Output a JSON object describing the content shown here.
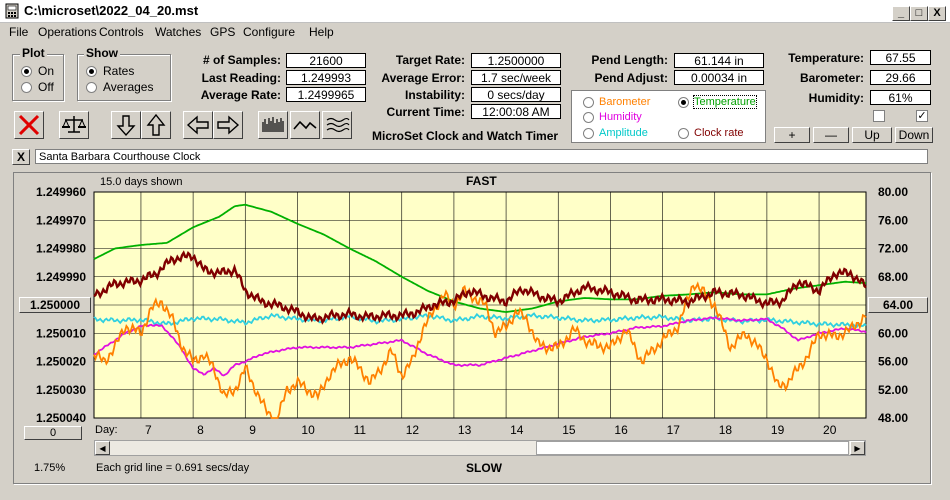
{
  "window": {
    "title": "C:\\microset\\2022_04_20.mst",
    "min": "_",
    "max": "□",
    "close": "X"
  },
  "menu": [
    "File",
    "Operations",
    "Controls",
    "Watches",
    "GPS",
    "Configure",
    "Help"
  ],
  "plot_group": {
    "title": "Plot",
    "on": "On",
    "off": "Off",
    "selected": "On"
  },
  "show_group": {
    "title": "Show",
    "rates": "Rates",
    "averages": "Averages",
    "selected": "Rates"
  },
  "stats": {
    "samples_label": "# of Samples:",
    "samples": "21600",
    "last_label": "Last Reading:",
    "last": "1.249993",
    "avg_label": "Average Rate:",
    "avg": "1.2499965",
    "target_label": "Target Rate:",
    "target": "1.2500000",
    "err_label": "Average Error:",
    "err": "1.7 sec/week",
    "instab_label": "Instability:",
    "instab": "0 secs/day",
    "time_label": "Current Time:",
    "time": "12:00:08 AM",
    "pendlen_label": "Pend Length:",
    "pendlen": "61.144 in",
    "pendadj_label": "Pend Adjust:",
    "pendadj": "0.00034 in",
    "temp_label": "Temperature:",
    "temp": "67.55",
    "baro_label": "Barometer:",
    "baro": "29.66",
    "hum_label": "Humidity:",
    "hum": "61%"
  },
  "app_caption": "MicroSet Clock and Watch Timer",
  "sensor_select": {
    "options": [
      {
        "label": "Barometer",
        "color": "#ff8000"
      },
      {
        "label": "Temperature",
        "color": "#00a000"
      },
      {
        "label": "Humidity",
        "color": "#e000e0"
      },
      {
        "label": "Amplitude",
        "color": "#00c8c8"
      },
      {
        "label": "Clock rate",
        "color": "#800000"
      }
    ],
    "selected": "Temperature"
  },
  "sensor_buttons": {
    "plus": "+",
    "minus": "—",
    "up": "Up",
    "down": "Down"
  },
  "checkboxes": [
    {
      "checked": false
    },
    {
      "checked": true,
      "mark": "✓"
    }
  ],
  "watch_name": "Santa Barbara Courthouse Clock",
  "clear_button": "X",
  "toolbar_icons": [
    "clear-x-icon",
    "scale-balance-icon",
    "arrow-down-icon",
    "arrow-up-icon",
    "arrow-left-icon",
    "arrow-right-icon",
    "bars-icon",
    "wave-icon",
    "multi-wave-icon"
  ],
  "graph": {
    "days_shown": "15.0 days shown",
    "fast": "FAST",
    "slow": "SLOW",
    "grid_note": "Each grid line = 0.691 secs/day",
    "day_label": "Day:",
    "percent": "1.75%",
    "center_button": "1.250000",
    "zero_button": "0",
    "right_button": "64.00"
  },
  "chart_data": {
    "type": "line",
    "x_unit": "day",
    "xlim": [
      6.1,
      20.9
    ],
    "x_ticks": [
      "7",
      "8",
      "9",
      "10",
      "11",
      "12",
      "13",
      "14",
      "15",
      "16",
      "17",
      "18",
      "19",
      "20"
    ],
    "y_left_ticks": [
      "1.249960",
      "1.249970",
      "1.249980",
      "1.249990",
      "",
      "1.250010",
      "1.250020",
      "1.250030",
      "1.250040"
    ],
    "y_left_range": [
      1.24996,
      1.25004
    ],
    "y_right_ticks": [
      "80.00",
      "76.00",
      "72.00",
      "68.00",
      "",
      "60.00",
      "56.00",
      "52.00",
      "48.00"
    ],
    "y_right_range": [
      80,
      48
    ],
    "grid": true,
    "series": [
      {
        "name": "Temperature",
        "color": "#00b000",
        "x": [
          6.1,
          6.5,
          7,
          7.5,
          8,
          8.5,
          8.8,
          9,
          9.5,
          10,
          10.5,
          11,
          11.5,
          12,
          12.5,
          13,
          13.5,
          14,
          14.5,
          15,
          15.5,
          16,
          16.5,
          17,
          17.5,
          18,
          18.5,
          19,
          19.5,
          20,
          20.5,
          20.9
        ],
        "y": [
          70.5,
          72,
          72.5,
          72.8,
          75,
          76.5,
          78,
          78.2,
          77.2,
          75.5,
          74,
          72,
          70.2,
          68,
          66,
          64.5,
          63.5,
          63,
          63.5,
          64.5,
          65,
          64.8,
          64.8,
          65.3,
          65.5,
          65.8,
          65.5,
          65.5,
          66.3,
          66.8,
          67.3,
          67.1
        ]
      },
      {
        "name": "Clock rate",
        "color": "#800000",
        "x": [
          6.1,
          6.5,
          7,
          7.3,
          7.6,
          8,
          8.2,
          8.5,
          8.8,
          9,
          9.3,
          9.7,
          10,
          10.3,
          10.7,
          11,
          11.3,
          11.7,
          12,
          12.3,
          12.6,
          13,
          13.3,
          13.7,
          14,
          14.3,
          14.7,
          15,
          15.5,
          16,
          16.5,
          17,
          17.5,
          18,
          18.5,
          19,
          19.3,
          19.6,
          20,
          20.3,
          20.6,
          20.9
        ],
        "y": [
          65.3,
          67,
          67.5,
          68.5,
          70.5,
          71,
          69,
          68.5,
          69,
          66,
          64.5,
          63.8,
          63,
          62,
          62.5,
          62.7,
          62.3,
          62.5,
          62.5,
          63,
          64,
          64.6,
          66,
          65,
          64.5,
          66.3,
          65.1,
          64.5,
          66.5,
          65.8,
          64.7,
          64.8,
          64.5,
          65.8,
          65.5,
          64.2,
          64.6,
          67.3,
          66,
          68.5,
          68.5,
          66.6
        ]
      },
      {
        "name": "Amplitude",
        "color": "#30d0e0",
        "x": [
          6.1,
          6.5,
          7,
          7.5,
          8,
          8.5,
          9,
          9.5,
          10,
          10.5,
          11,
          11.5,
          12,
          12.5,
          13,
          13.5,
          14,
          14.5,
          15,
          15.5,
          16,
          16.5,
          17,
          17.5,
          18,
          18.5,
          19,
          19.5,
          20,
          20.5,
          20.9
        ],
        "y": [
          62,
          61.8,
          61.9,
          61.3,
          62.1,
          62,
          61.5,
          62.5,
          62,
          61.8,
          62.4,
          61.7,
          62,
          62.5,
          61.8,
          62.4,
          62.1,
          62.5,
          62.2,
          61.8,
          61.9,
          62.2,
          62.3,
          61.8,
          62.1,
          61.7,
          61.9,
          61.6,
          61.3,
          61.2,
          61
        ]
      },
      {
        "name": "Humidity",
        "color": "#e010e0",
        "x": [
          6.1,
          6.4,
          6.7,
          7,
          7.2,
          7.4,
          7.6,
          7.8,
          8,
          8.2,
          8.4,
          8.6,
          8.8,
          9,
          9.3,
          9.6,
          10,
          10.5,
          11,
          11.5,
          12,
          12.5,
          13,
          13.5,
          14,
          14.5,
          15,
          15.5,
          16,
          16.5,
          17,
          17.5,
          18,
          18.5,
          19,
          19.3,
          19.6,
          20,
          20.5,
          20.9
        ],
        "y": [
          57,
          58.5,
          60,
          61,
          61.2,
          61,
          59.5,
          57.5,
          55,
          54.2,
          55,
          54,
          55.5,
          56,
          57,
          57.5,
          58,
          58,
          58,
          58.5,
          59,
          57,
          55.5,
          55.5,
          56.5,
          57.5,
          58.5,
          59.5,
          60,
          60.8,
          61,
          61.8,
          62.2,
          61.8,
          62,
          60.7,
          59,
          60,
          60.7,
          60.2
        ]
      },
      {
        "name": "Barometer",
        "color": "#ff8000",
        "x": [
          6.1,
          6.3,
          6.5,
          6.7,
          7,
          7.2,
          7.4,
          7.6,
          7.8,
          8,
          8.2,
          8.4,
          8.6,
          8.8,
          9,
          9.2,
          9.4,
          9.6,
          9.8,
          10,
          10.2,
          10.4,
          10.6,
          10.8,
          11,
          11.2,
          11.4,
          11.6,
          11.8,
          12,
          12.2,
          12.4,
          12.6,
          12.8,
          13,
          13.2,
          13.4,
          13.6,
          13.8,
          14,
          14.2,
          14.4,
          14.6,
          14.8,
          15,
          15.3,
          15.6,
          16,
          16.3,
          16.6,
          17,
          17.3,
          17.6,
          18,
          18.3,
          18.6,
          19,
          19.2,
          19.4,
          19.6,
          19.8,
          20,
          20.3,
          20.6,
          20.9
        ],
        "y": [
          57,
          56,
          58,
          61,
          60,
          63.5,
          64.5,
          62,
          58,
          56,
          57,
          55,
          51,
          52,
          55,
          52,
          49,
          47.5,
          52,
          53,
          52,
          51,
          54,
          55.5,
          56.5,
          55,
          53,
          55,
          57.5,
          54,
          56,
          60.5,
          63,
          65.5,
          64,
          66,
          65,
          64,
          60,
          61,
          63,
          62,
          58.5,
          58,
          58,
          60.5,
          58.5,
          58,
          60.5,
          56,
          59,
          61,
          67.2,
          64,
          58,
          60,
          56.5,
          52.5,
          53,
          55,
          57,
          60,
          59.5,
          60.5,
          62.5
        ]
      }
    ]
  }
}
